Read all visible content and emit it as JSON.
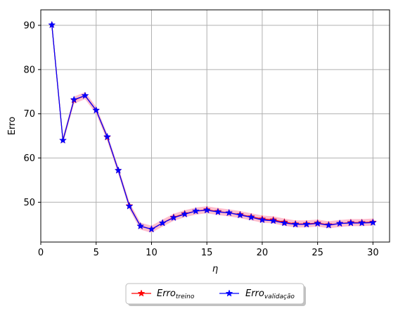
{
  "chart_data": {
    "type": "line",
    "title": "",
    "xlabel": "η",
    "ylabel": "Erro",
    "xlim": [
      0,
      31.5
    ],
    "ylim": [
      41,
      93.5
    ],
    "xticks": [
      0,
      5,
      10,
      15,
      20,
      25,
      30
    ],
    "yticks": [
      50,
      60,
      70,
      80,
      90
    ],
    "grid": true,
    "legend_placement": "bottom-center-outside",
    "x": [
      1,
      2,
      3,
      4,
      5,
      6,
      7,
      8,
      9,
      10,
      11,
      12,
      13,
      14,
      15,
      16,
      17,
      18,
      19,
      20,
      21,
      22,
      23,
      24,
      25,
      26,
      27,
      28,
      29,
      30
    ],
    "series": [
      {
        "name": "Erro",
        "name_sub": "treino",
        "color": "#ff0000",
        "marker": "star",
        "values": [
          90.1,
          64.0,
          73.1,
          74.1,
          70.8,
          64.7,
          57.2,
          49.2,
          44.6,
          43.9,
          45.3,
          46.6,
          47.4,
          48.0,
          48.3,
          47.9,
          47.6,
          47.2,
          46.7,
          46.2,
          46.0,
          45.5,
          45.1,
          45.1,
          45.3,
          44.9,
          45.2,
          45.4,
          45.4,
          45.5
        ],
        "band": 0.8,
        "band_color": "#ffb3c6"
      },
      {
        "name": "Erro",
        "name_sub": "validação",
        "color": "#0000ff",
        "marker": "star",
        "values": [
          90.1,
          64.0,
          73.2,
          74.1,
          70.8,
          64.8,
          57.2,
          49.1,
          44.6,
          43.9,
          45.3,
          46.5,
          47.3,
          48.0,
          48.2,
          47.8,
          47.6,
          47.1,
          46.6,
          46.0,
          45.8,
          45.3,
          45.0,
          45.0,
          45.2,
          44.8,
          45.2,
          45.3,
          45.3,
          45.4
        ]
      }
    ]
  }
}
